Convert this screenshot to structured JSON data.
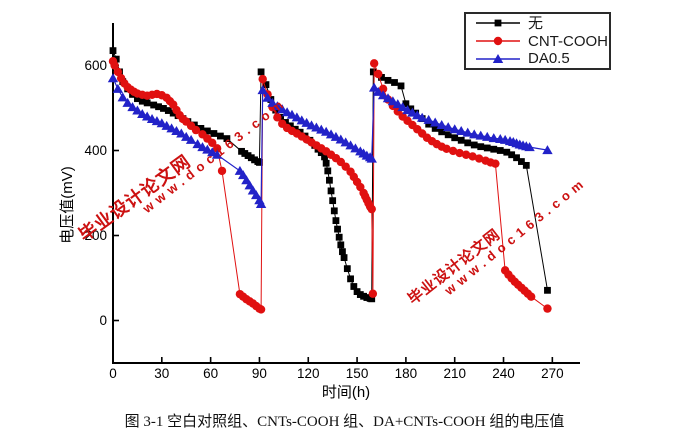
{
  "figure": {
    "caption": "图 3-1 空白对照组、CNTs-COOH 组、DA+CNTs-COOH 组的电压值"
  },
  "watermark": {
    "site_name": "毕业设计论文网",
    "site_url": "www.doc163.com",
    "color": "#cc1111"
  },
  "chart_data": {
    "type": "line",
    "title": "",
    "xlabel": "时间(h)",
    "ylabel": "电压值(mV)",
    "x_ticks": [
      0,
      30,
      60,
      90,
      120,
      150,
      180,
      210,
      240,
      270
    ],
    "y_ticks": [
      0,
      200,
      400,
      600
    ],
    "xlim": [
      0,
      287
    ],
    "ylim": [
      -100,
      700
    ],
    "grid": false,
    "legend_position": "top-right",
    "axis_color": "#000000",
    "series": [
      {
        "name": "无",
        "color": "#000000",
        "marker": "square",
        "points": [
          [
            0,
            635
          ],
          [
            2,
            615
          ],
          [
            4,
            585
          ],
          [
            6,
            562
          ],
          [
            9,
            545
          ],
          [
            12,
            532
          ],
          [
            15,
            522
          ],
          [
            18,
            516
          ],
          [
            21,
            512
          ],
          [
            25,
            507
          ],
          [
            28,
            503
          ],
          [
            31,
            499
          ],
          [
            34,
            494
          ],
          [
            37,
            488
          ],
          [
            40,
            482
          ],
          [
            43,
            475
          ],
          [
            46,
            468
          ],
          [
            50,
            460
          ],
          [
            54,
            452
          ],
          [
            58,
            446
          ],
          [
            62,
            440
          ],
          [
            66,
            434
          ],
          [
            70,
            428
          ],
          [
            79,
            398
          ],
          [
            81,
            393
          ],
          [
            83,
            388
          ],
          [
            85,
            383
          ],
          [
            87,
            378
          ],
          [
            89,
            374
          ],
          [
            90,
            372
          ],
          [
            91,
            585
          ],
          [
            94,
            555
          ],
          [
            97,
            520
          ],
          [
            100,
            495
          ],
          [
            103,
            478
          ],
          [
            106,
            466
          ],
          [
            109,
            458
          ],
          [
            112,
            450
          ],
          [
            115,
            443
          ],
          [
            118,
            434
          ],
          [
            121,
            424
          ],
          [
            124,
            412
          ],
          [
            126,
            403
          ],
          [
            128,
            395
          ],
          [
            130,
            385
          ],
          [
            131,
            370
          ],
          [
            132,
            352
          ],
          [
            133,
            330
          ],
          [
            134,
            305
          ],
          [
            135,
            282
          ],
          [
            136,
            258
          ],
          [
            137,
            235
          ],
          [
            138,
            215
          ],
          [
            139,
            196
          ],
          [
            140,
            178
          ],
          [
            141,
            162
          ],
          [
            142,
            148
          ],
          [
            144,
            122
          ],
          [
            146,
            98
          ],
          [
            148,
            80
          ],
          [
            150,
            68
          ],
          [
            152,
            61
          ],
          [
            154,
            57
          ],
          [
            156,
            54
          ],
          [
            158,
            52
          ],
          [
            159,
            51
          ],
          [
            160,
            585
          ],
          [
            165,
            572
          ],
          [
            169,
            565
          ],
          [
            173,
            560
          ],
          [
            177,
            552
          ],
          [
            180,
            510
          ],
          [
            183,
            498
          ],
          [
            186,
            488
          ],
          [
            190,
            475
          ],
          [
            194,
            462
          ],
          [
            198,
            452
          ],
          [
            202,
            444
          ],
          [
            206,
            437
          ],
          [
            210,
            430
          ],
          [
            214,
            424
          ],
          [
            218,
            418
          ],
          [
            222,
            413
          ],
          [
            226,
            409
          ],
          [
            230,
            406
          ],
          [
            234,
            403
          ],
          [
            238,
            400
          ],
          [
            242,
            396
          ],
          [
            245,
            390
          ],
          [
            248,
            383
          ],
          [
            251,
            374
          ],
          [
            254,
            365
          ],
          [
            267,
            71
          ]
        ]
      },
      {
        "name": "CNT-COOH",
        "color": "#e01010",
        "marker": "circle",
        "points": [
          [
            0,
            610
          ],
          [
            1,
            600
          ],
          [
            3,
            585
          ],
          [
            5,
            570
          ],
          [
            7,
            558
          ],
          [
            9,
            549
          ],
          [
            11,
            543
          ],
          [
            13,
            538
          ],
          [
            15,
            534
          ],
          [
            18,
            531
          ],
          [
            21,
            529
          ],
          [
            24,
            531
          ],
          [
            27,
            533
          ],
          [
            30,
            530
          ],
          [
            33,
            524
          ],
          [
            35,
            516
          ],
          [
            37,
            508
          ],
          [
            39,
            495
          ],
          [
            41,
            483
          ],
          [
            43,
            474
          ],
          [
            45,
            468
          ],
          [
            48,
            458
          ],
          [
            51,
            448
          ],
          [
            55,
            438
          ],
          [
            58,
            428
          ],
          [
            61,
            418
          ],
          [
            64,
            405
          ],
          [
            67,
            352
          ],
          [
            78,
            62
          ],
          [
            80,
            56
          ],
          [
            82,
            50
          ],
          [
            84,
            45
          ],
          [
            86,
            40
          ],
          [
            88,
            34
          ],
          [
            90,
            28
          ],
          [
            91,
            26
          ],
          [
            92,
            568
          ],
          [
            95,
            532
          ],
          [
            98,
            502
          ],
          [
            101,
            478
          ],
          [
            104,
            463
          ],
          [
            107,
            453
          ],
          [
            110,
            446
          ],
          [
            113,
            440
          ],
          [
            116,
            433
          ],
          [
            119,
            426
          ],
          [
            122,
            419
          ],
          [
            125,
            412
          ],
          [
            128,
            405
          ],
          [
            131,
            398
          ],
          [
            134,
            390
          ],
          [
            137,
            382
          ],
          [
            140,
            373
          ],
          [
            143,
            362
          ],
          [
            146,
            350
          ],
          [
            148,
            338
          ],
          [
            150,
            326
          ],
          [
            152,
            314
          ],
          [
            154,
            300
          ],
          [
            155,
            292
          ],
          [
            156,
            284
          ],
          [
            157,
            276
          ],
          [
            158,
            268
          ],
          [
            159,
            262
          ],
          [
            159.7,
            63
          ],
          [
            160.5,
            605
          ],
          [
            163,
            580
          ],
          [
            166,
            545
          ],
          [
            169,
            520
          ],
          [
            172,
            505
          ],
          [
            175,
            492
          ],
          [
            178,
            480
          ],
          [
            181,
            470
          ],
          [
            184,
            460
          ],
          [
            187,
            450
          ],
          [
            190,
            440
          ],
          [
            193,
            430
          ],
          [
            196,
            422
          ],
          [
            199,
            415
          ],
          [
            202,
            409
          ],
          [
            205,
            404
          ],
          [
            209,
            399
          ],
          [
            213,
            394
          ],
          [
            217,
            390
          ],
          [
            221,
            386
          ],
          [
            225,
            381
          ],
          [
            229,
            376
          ],
          [
            232,
            372
          ],
          [
            235,
            369
          ],
          [
            241,
            118
          ],
          [
            243,
            108
          ],
          [
            245,
            99
          ],
          [
            247,
            91
          ],
          [
            249,
            84
          ],
          [
            251,
            77
          ],
          [
            253,
            70
          ],
          [
            255,
            63
          ],
          [
            257,
            56
          ],
          [
            267,
            28
          ]
        ]
      },
      {
        "name": "DA0.5",
        "color": "#2222c8",
        "marker": "triangle",
        "points": [
          [
            0,
            570
          ],
          [
            3,
            545
          ],
          [
            6,
            525
          ],
          [
            9,
            512
          ],
          [
            12,
            502
          ],
          [
            15,
            494
          ],
          [
            18,
            486
          ],
          [
            21,
            480
          ],
          [
            24,
            474
          ],
          [
            27,
            469
          ],
          [
            30,
            464
          ],
          [
            33,
            458
          ],
          [
            36,
            452
          ],
          [
            39,
            446
          ],
          [
            42,
            440
          ],
          [
            45,
            432
          ],
          [
            48,
            425
          ],
          [
            52,
            415
          ],
          [
            55,
            408
          ],
          [
            58,
            402
          ],
          [
            61,
            396
          ],
          [
            64,
            390
          ],
          [
            78,
            352
          ],
          [
            80,
            342
          ],
          [
            82,
            330
          ],
          [
            84,
            318
          ],
          [
            86,
            306
          ],
          [
            88,
            295
          ],
          [
            90,
            283
          ],
          [
            91,
            274
          ],
          [
            92,
            542
          ],
          [
            95,
            524
          ],
          [
            98,
            512
          ],
          [
            101,
            504
          ],
          [
            104,
            497
          ],
          [
            107,
            490
          ],
          [
            110,
            484
          ],
          [
            113,
            478
          ],
          [
            116,
            471
          ],
          [
            119,
            465
          ],
          [
            122,
            459
          ],
          [
            125,
            454
          ],
          [
            128,
            449
          ],
          [
            131,
            444
          ],
          [
            134,
            438
          ],
          [
            137,
            432
          ],
          [
            140,
            426
          ],
          [
            143,
            419
          ],
          [
            146,
            412
          ],
          [
            149,
            405
          ],
          [
            152,
            398
          ],
          [
            154,
            393
          ],
          [
            156,
            388
          ],
          [
            158,
            384
          ],
          [
            159,
            381
          ],
          [
            160.5,
            548
          ],
          [
            163,
            538
          ],
          [
            166,
            530
          ],
          [
            169,
            523
          ],
          [
            172,
            516
          ],
          [
            175,
            509
          ],
          [
            178,
            502
          ],
          [
            181,
            495
          ],
          [
            184,
            489
          ],
          [
            187,
            483
          ],
          [
            190,
            477
          ],
          [
            194,
            472
          ],
          [
            198,
            466
          ],
          [
            202,
            460
          ],
          [
            206,
            455
          ],
          [
            210,
            450
          ],
          [
            214,
            446
          ],
          [
            218,
            442
          ],
          [
            222,
            438
          ],
          [
            226,
            435
          ],
          [
            230,
            432
          ],
          [
            234,
            429
          ],
          [
            238,
            427
          ],
          [
            241,
            425
          ],
          [
            244,
            422
          ],
          [
            246,
            420
          ],
          [
            248,
            417
          ],
          [
            250,
            414
          ],
          [
            252,
            412
          ],
          [
            254,
            410
          ],
          [
            256,
            408
          ],
          [
            267,
            401
          ]
        ]
      }
    ]
  }
}
